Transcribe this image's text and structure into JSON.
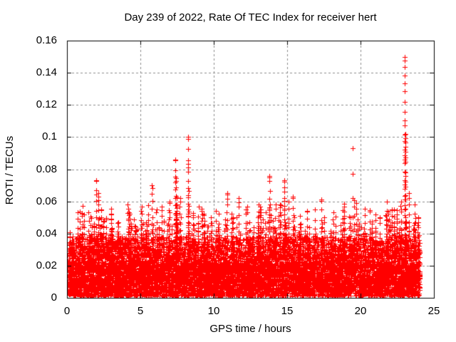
{
  "chart_data": {
    "type": "scatter",
    "title": "Day 239 of 2022, Rate Of TEC Index for receiver hert",
    "xlabel": "GPS time / hours",
    "ylabel": "ROTI / TECUs",
    "xlim": [
      0,
      25
    ],
    "ylim": [
      0,
      0.16
    ],
    "xticks": [
      0,
      5,
      10,
      15,
      20,
      25
    ],
    "xtick_labels": [
      "0",
      "5",
      "10",
      "15",
      "20",
      "25"
    ],
    "yticks": [
      0,
      0.02,
      0.04,
      0.06,
      0.08,
      0.1,
      0.12,
      0.14,
      0.16
    ],
    "ytick_labels": [
      "0",
      "0.02",
      "0.04",
      "0.06",
      "0.08",
      "0.1",
      "0.12",
      "0.14",
      "0.16"
    ],
    "grid": {
      "visible": true,
      "style": "dashed",
      "color": "#8c8c8c"
    },
    "border_color": "#000000",
    "background": "#ffffff",
    "legend": "none",
    "marker": {
      "glyph": "+",
      "color": "#ff0000",
      "size": 7
    },
    "data_time_range_hours": [
      0.02,
      24.05
    ],
    "baseline_band": {
      "v_min": 0.001,
      "v_solid_top": 0.02,
      "v_fade_top": 0.038,
      "n_dense": 6200,
      "n_fade": 2600
    },
    "minor_spike_field": {
      "count": 300,
      "peak_min": 0.032,
      "peak_max": 0.062
    },
    "spikes": [
      {
        "t": 0.35,
        "peak": 0.036
      },
      {
        "t": 1.0,
        "peak": 0.04
      },
      {
        "t": 1.5,
        "peak": 0.038
      },
      {
        "t": 2.0,
        "peak": 0.073
      },
      {
        "t": 2.15,
        "peak": 0.065
      },
      {
        "t": 2.5,
        "peak": 0.048
      },
      {
        "t": 3.0,
        "peak": 0.052
      },
      {
        "t": 3.5,
        "peak": 0.047
      },
      {
        "t": 4.2,
        "peak": 0.053
      },
      {
        "t": 4.7,
        "peak": 0.042
      },
      {
        "t": 5.2,
        "peak": 0.046
      },
      {
        "t": 5.8,
        "peak": 0.07
      },
      {
        "t": 6.1,
        "peak": 0.055
      },
      {
        "t": 6.6,
        "peak": 0.048
      },
      {
        "t": 7.0,
        "peak": 0.06
      },
      {
        "t": 7.4,
        "peak": 0.086
      },
      {
        "t": 7.7,
        "peak": 0.062
      },
      {
        "t": 8.25,
        "peak": 0.1
      },
      {
        "t": 8.6,
        "peak": 0.05
      },
      {
        "t": 9.2,
        "peak": 0.052
      },
      {
        "t": 9.8,
        "peak": 0.05
      },
      {
        "t": 10.3,
        "peak": 0.044
      },
      {
        "t": 10.9,
        "peak": 0.065
      },
      {
        "t": 11.3,
        "peak": 0.05
      },
      {
        "t": 11.7,
        "peak": 0.062
      },
      {
        "t": 12.2,
        "peak": 0.055
      },
      {
        "t": 12.7,
        "peak": 0.044
      },
      {
        "t": 13.2,
        "peak": 0.055
      },
      {
        "t": 13.8,
        "peak": 0.076
      },
      {
        "t": 14.2,
        "peak": 0.058
      },
      {
        "t": 14.8,
        "peak": 0.073
      },
      {
        "t": 15.4,
        "peak": 0.063
      },
      {
        "t": 15.9,
        "peak": 0.046
      },
      {
        "t": 16.5,
        "peak": 0.044
      },
      {
        "t": 16.9,
        "peak": 0.055
      },
      {
        "t": 17.4,
        "peak": 0.046
      },
      {
        "t": 18.0,
        "peak": 0.038
      },
      {
        "t": 18.6,
        "peak": 0.036
      },
      {
        "t": 19.47,
        "peak": 0.093,
        "sparse": true
      },
      {
        "t": 20.2,
        "peak": 0.04
      },
      {
        "t": 20.8,
        "peak": 0.046
      },
      {
        "t": 21.3,
        "peak": 0.05
      },
      {
        "t": 21.8,
        "peak": 0.06
      },
      {
        "t": 22.3,
        "peak": 0.055
      },
      {
        "t": 22.75,
        "peak": 0.06
      },
      {
        "t": 23.0,
        "peak": 0.15
      },
      {
        "t": 23.3,
        "peak": 0.065
      },
      {
        "t": 23.7,
        "peak": 0.058
      },
      {
        "t": 23.95,
        "peak": 0.05
      }
    ],
    "seed": 20220239
  }
}
